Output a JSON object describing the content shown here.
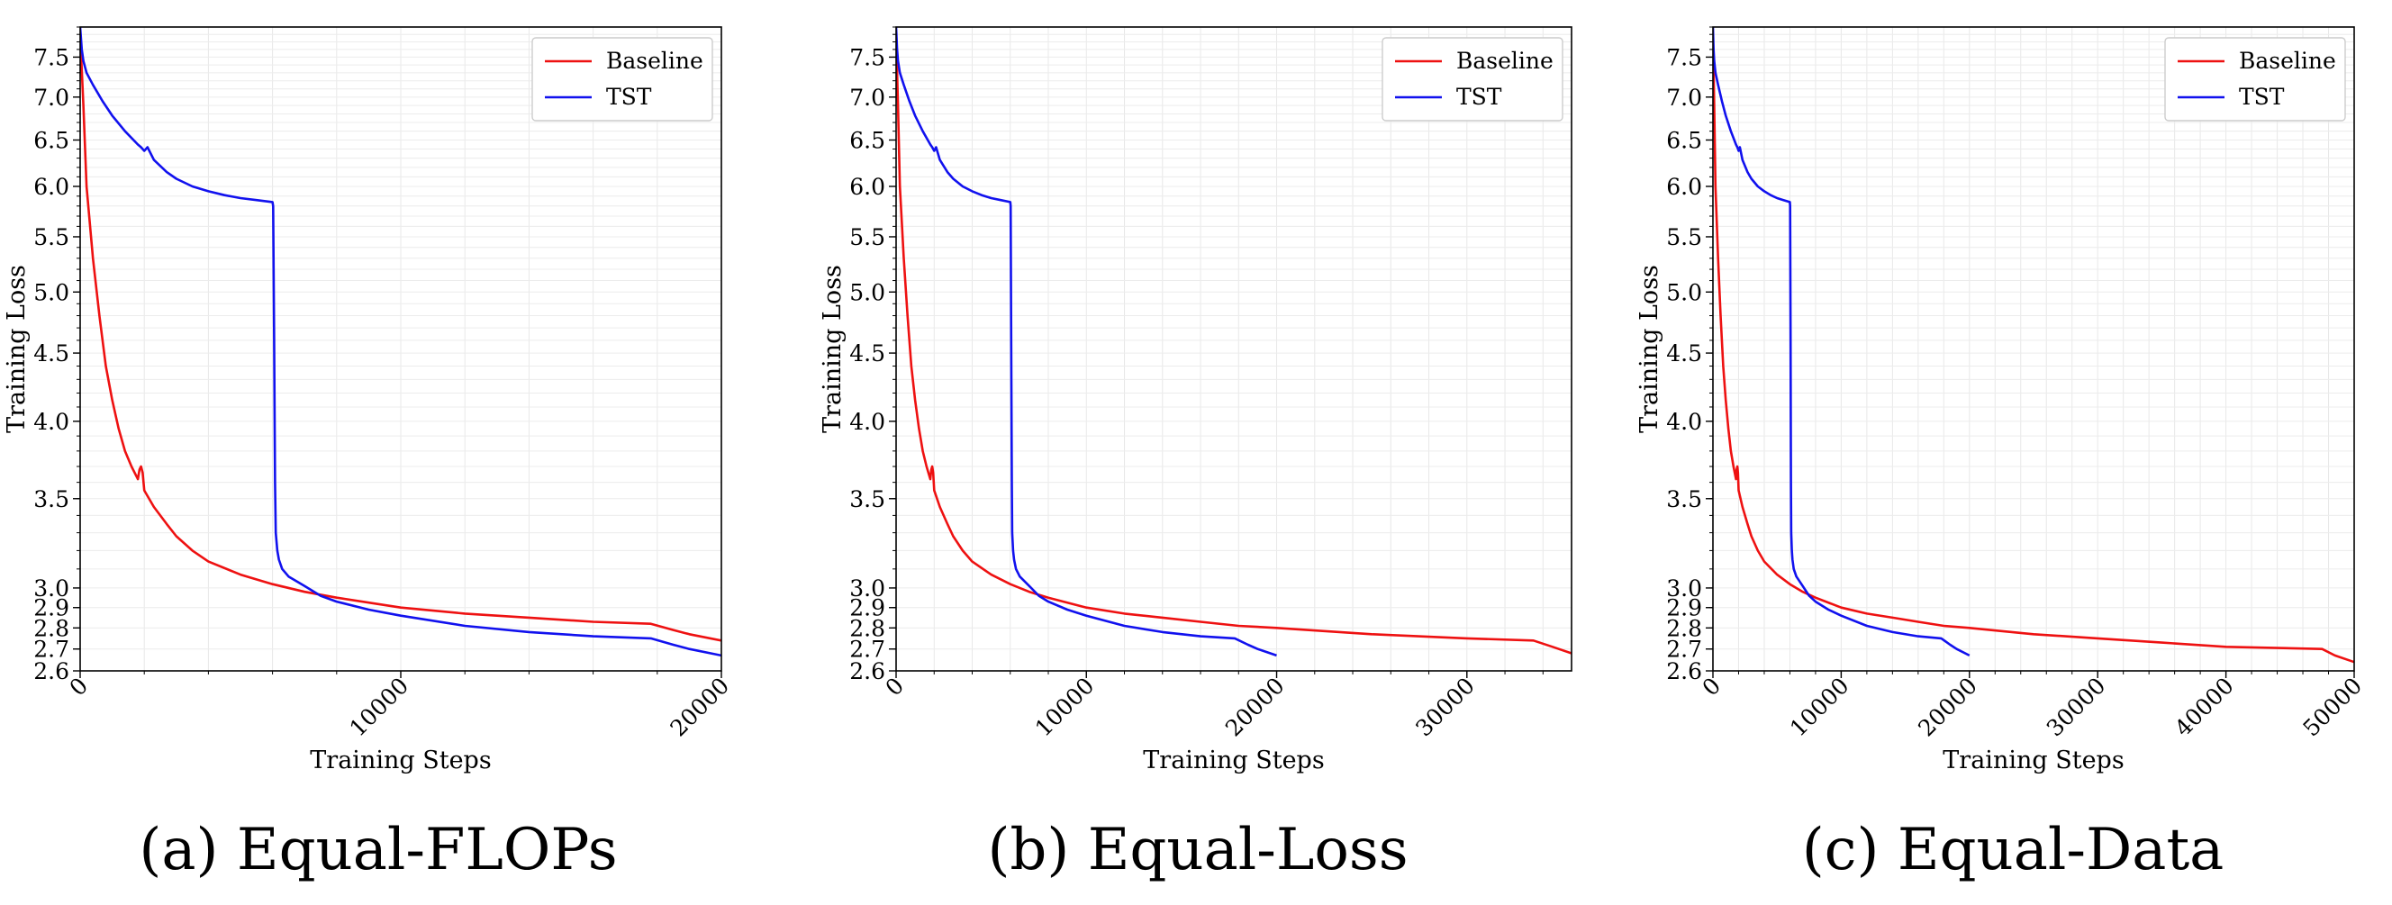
{
  "chart_data": [
    {
      "type": "line",
      "panel": "a",
      "caption": "(a) Equal-FLOPs",
      "xlabel": "Training Steps",
      "ylabel": "Training Loss",
      "y_scale": "log",
      "xlim": [
        0,
        20000
      ],
      "ylim": [
        2.6,
        7.9
      ],
      "x_ticks": [
        0,
        10000,
        20000
      ],
      "y_ticks": [
        2.6,
        2.7,
        2.8,
        2.9,
        3.0,
        3.5,
        4.0,
        4.5,
        5.0,
        5.5,
        6.0,
        6.5,
        7.0,
        7.5
      ],
      "grid": true,
      "legend": "top-right",
      "series": [
        {
          "name": "Baseline",
          "color": "#ee1111",
          "x": [
            0,
            100,
            200,
            400,
            600,
            800,
            1000,
            1200,
            1400,
            1600,
            1800,
            1850,
            1900,
            1950,
            2000,
            2300,
            2700,
            3000,
            3500,
            4000,
            5000,
            6000,
            7000,
            8000,
            10000,
            12000,
            14000,
            16000,
            17800,
            18500,
            19000,
            20000
          ],
          "y": [
            7.8,
            6.9,
            6.0,
            5.3,
            4.8,
            4.4,
            4.15,
            3.95,
            3.8,
            3.7,
            3.62,
            3.68,
            3.7,
            3.66,
            3.55,
            3.45,
            3.35,
            3.28,
            3.2,
            3.14,
            3.07,
            3.02,
            2.98,
            2.95,
            2.9,
            2.87,
            2.85,
            2.83,
            2.82,
            2.79,
            2.77,
            2.74
          ]
        },
        {
          "name": "TST",
          "color": "#1111ee",
          "x": [
            0,
            50,
            100,
            200,
            400,
            700,
            1000,
            1400,
            1800,
            1900,
            2000,
            2100,
            2300,
            2700,
            3000,
            3500,
            4000,
            4500,
            5000,
            5500,
            6000,
            6020,
            6050,
            6080,
            6100,
            6150,
            6200,
            6300,
            6500,
            7000,
            7500,
            8000,
            9000,
            10000,
            12000,
            14000,
            16000,
            17800,
            18500,
            19000,
            20000
          ],
          "y": [
            7.9,
            7.6,
            7.45,
            7.3,
            7.15,
            6.95,
            6.78,
            6.6,
            6.45,
            6.42,
            6.38,
            6.42,
            6.28,
            6.15,
            6.08,
            6.0,
            5.95,
            5.91,
            5.88,
            5.86,
            5.84,
            5.8,
            4.6,
            3.6,
            3.3,
            3.2,
            3.15,
            3.1,
            3.06,
            3.01,
            2.96,
            2.93,
            2.89,
            2.86,
            2.81,
            2.78,
            2.76,
            2.75,
            2.72,
            2.7,
            2.67
          ]
        }
      ]
    },
    {
      "type": "line",
      "panel": "b",
      "caption": "(b) Equal-Loss",
      "xlabel": "Training Steps",
      "ylabel": "Training Loss",
      "y_scale": "log",
      "xlim": [
        0,
        35500
      ],
      "ylim": [
        2.6,
        7.9
      ],
      "x_ticks": [
        0,
        10000,
        20000,
        30000
      ],
      "y_ticks": [
        2.6,
        2.7,
        2.8,
        2.9,
        3.0,
        3.5,
        4.0,
        4.5,
        5.0,
        5.5,
        6.0,
        6.5,
        7.0,
        7.5
      ],
      "grid": true,
      "legend": "top-right",
      "series": [
        {
          "name": "Baseline",
          "color": "#ee1111",
          "x": [
            0,
            100,
            200,
            400,
            600,
            800,
            1000,
            1200,
            1400,
            1600,
            1800,
            1850,
            1900,
            1950,
            2000,
            2300,
            2700,
            3000,
            3500,
            4000,
            5000,
            6000,
            7000,
            8000,
            10000,
            12000,
            14000,
            16000,
            18000,
            20000,
            25000,
            30000,
            33500,
            34500,
            35500
          ],
          "y": [
            7.8,
            6.9,
            6.0,
            5.3,
            4.8,
            4.4,
            4.15,
            3.95,
            3.8,
            3.7,
            3.62,
            3.68,
            3.7,
            3.66,
            3.55,
            3.45,
            3.35,
            3.28,
            3.2,
            3.14,
            3.07,
            3.02,
            2.98,
            2.95,
            2.9,
            2.87,
            2.85,
            2.83,
            2.81,
            2.8,
            2.77,
            2.75,
            2.74,
            2.71,
            2.68
          ]
        },
        {
          "name": "TST",
          "color": "#1111ee",
          "x": [
            0,
            50,
            100,
            200,
            400,
            700,
            1000,
            1400,
            1800,
            1900,
            2000,
            2100,
            2300,
            2700,
            3000,
            3500,
            4000,
            4500,
            5000,
            5500,
            6000,
            6020,
            6050,
            6080,
            6100,
            6150,
            6200,
            6300,
            6500,
            7000,
            7500,
            8000,
            9000,
            10000,
            12000,
            14000,
            16000,
            17800,
            18500,
            19000,
            20000
          ],
          "y": [
            7.9,
            7.6,
            7.45,
            7.3,
            7.15,
            6.95,
            6.78,
            6.6,
            6.45,
            6.42,
            6.38,
            6.42,
            6.28,
            6.15,
            6.08,
            6.0,
            5.95,
            5.91,
            5.88,
            5.86,
            5.84,
            5.8,
            4.6,
            3.6,
            3.3,
            3.2,
            3.15,
            3.1,
            3.06,
            3.01,
            2.96,
            2.93,
            2.89,
            2.86,
            2.81,
            2.78,
            2.76,
            2.75,
            2.72,
            2.7,
            2.67
          ]
        }
      ]
    },
    {
      "type": "line",
      "panel": "c",
      "caption": "(c) Equal-Data",
      "xlabel": "Training Steps",
      "ylabel": "Training Loss",
      "y_scale": "log",
      "xlim": [
        0,
        50000
      ],
      "ylim": [
        2.6,
        7.9
      ],
      "x_ticks": [
        0,
        10000,
        20000,
        30000,
        40000,
        50000
      ],
      "y_ticks": [
        2.6,
        2.7,
        2.8,
        2.9,
        3.0,
        3.5,
        4.0,
        4.5,
        5.0,
        5.5,
        6.0,
        6.5,
        7.0,
        7.5
      ],
      "grid": true,
      "legend": "top-right",
      "series": [
        {
          "name": "Baseline",
          "color": "#ee1111",
          "x": [
            0,
            100,
            200,
            400,
            600,
            800,
            1000,
            1200,
            1400,
            1600,
            1800,
            1850,
            1900,
            1950,
            2000,
            2300,
            2700,
            3000,
            3500,
            4000,
            5000,
            6000,
            7000,
            8000,
            10000,
            12000,
            14000,
            16000,
            18000,
            20000,
            25000,
            30000,
            35000,
            40000,
            47500,
            48500,
            50000
          ],
          "y": [
            7.8,
            6.9,
            6.0,
            5.3,
            4.8,
            4.4,
            4.15,
            3.95,
            3.8,
            3.7,
            3.62,
            3.68,
            3.7,
            3.66,
            3.55,
            3.45,
            3.35,
            3.28,
            3.2,
            3.14,
            3.07,
            3.02,
            2.98,
            2.95,
            2.9,
            2.87,
            2.85,
            2.83,
            2.81,
            2.8,
            2.77,
            2.75,
            2.73,
            2.71,
            2.7,
            2.67,
            2.64
          ]
        },
        {
          "name": "TST",
          "color": "#1111ee",
          "x": [
            0,
            50,
            100,
            200,
            400,
            700,
            1000,
            1400,
            1800,
            1900,
            2000,
            2100,
            2300,
            2700,
            3000,
            3500,
            4000,
            4500,
            5000,
            5500,
            6000,
            6020,
            6050,
            6080,
            6100,
            6150,
            6200,
            6300,
            6500,
            7000,
            7500,
            8000,
            9000,
            10000,
            12000,
            14000,
            16000,
            17800,
            18500,
            19000,
            20000
          ],
          "y": [
            7.9,
            7.6,
            7.45,
            7.3,
            7.15,
            6.95,
            6.78,
            6.6,
            6.45,
            6.42,
            6.38,
            6.42,
            6.28,
            6.15,
            6.08,
            6.0,
            5.95,
            5.91,
            5.88,
            5.86,
            5.84,
            5.8,
            4.6,
            3.6,
            3.3,
            3.2,
            3.15,
            3.1,
            3.06,
            3.01,
            2.96,
            2.93,
            2.89,
            2.86,
            2.81,
            2.78,
            2.76,
            2.75,
            2.72,
            2.7,
            2.67
          ]
        }
      ]
    }
  ]
}
